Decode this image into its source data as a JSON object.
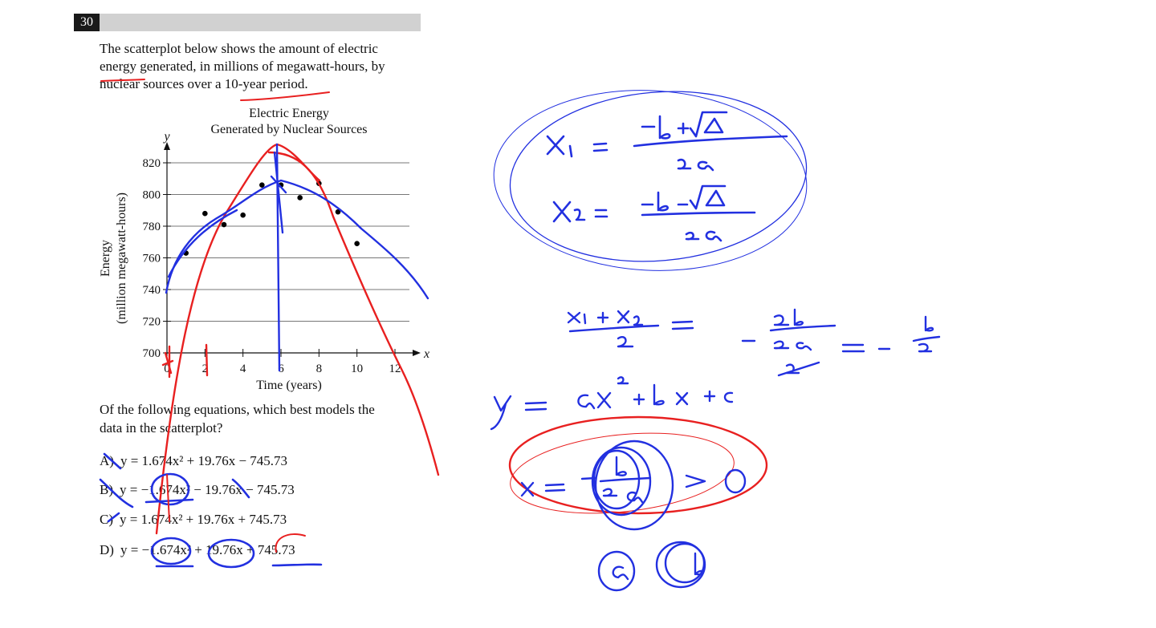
{
  "question": {
    "number": "30",
    "stem_lines": [
      "The scatterplot below shows the amount of electric",
      "energy generated, in millions of megawatt-hours, by",
      "nuclear sources over a 10-year period."
    ],
    "prompt_lines": [
      "Of the following equations, which best models the",
      "data in the scatterplot?"
    ],
    "choices": [
      {
        "letter": "A)",
        "equation": "y = 1.674x² + 19.76x − 745.73"
      },
      {
        "letter": "B)",
        "equation": "y = −1.674x² − 19.76x − 745.73"
      },
      {
        "letter": "C)",
        "equation": "y = 1.674x² + 19.76x + 745.73"
      },
      {
        "letter": "D)",
        "equation": "y = −1.674x² + 19.76x + 745.73"
      }
    ]
  },
  "chart_data": {
    "type": "scatter",
    "title_lines": [
      "Electric Energy",
      "Generated by Nuclear Sources"
    ],
    "xlabel": "Time (years)",
    "ylabel_lines": [
      "Energy",
      "(million megawatt-hours)"
    ],
    "x_axis_name": "x",
    "y_axis_name": "y",
    "xlim": [
      0,
      12
    ],
    "ylim": [
      700,
      820
    ],
    "xticks": [
      0,
      2,
      4,
      6,
      8,
      10,
      12
    ],
    "yticks": [
      700,
      720,
      740,
      760,
      780,
      800,
      820
    ],
    "grid": "horizontal",
    "points": [
      {
        "x": 1,
        "y": 763
      },
      {
        "x": 2,
        "y": 788
      },
      {
        "x": 3,
        "y": 781
      },
      {
        "x": 4,
        "y": 787
      },
      {
        "x": 5,
        "y": 806
      },
      {
        "x": 6,
        "y": 806
      },
      {
        "x": 7,
        "y": 798
      },
      {
        "x": 8,
        "y": 807
      },
      {
        "x": 9,
        "y": 789
      },
      {
        "x": 10,
        "y": 769
      }
    ],
    "point_color": "#000000"
  },
  "handwriting": {
    "ink_blue": "#2230e0",
    "ink_red": "#e82020"
  }
}
